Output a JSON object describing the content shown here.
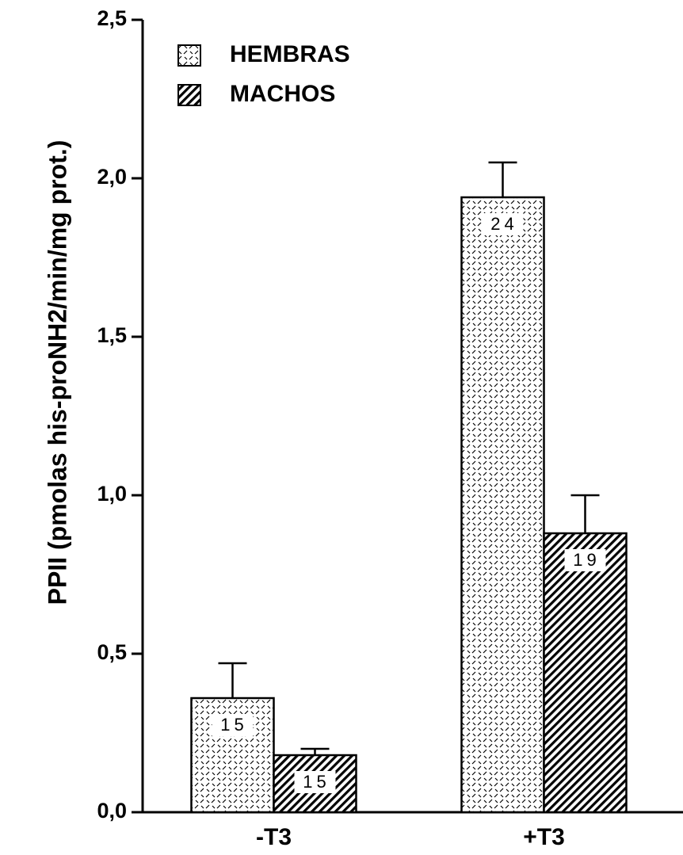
{
  "chart_data": {
    "type": "bar",
    "y_label": "PPII (pmolas his-proNH2/min/mg prot.)",
    "categories": [
      "-T3",
      "+T3"
    ],
    "series": [
      {
        "name": "HEMBRAS",
        "color": "#000000",
        "values": [
          0.36,
          1.94
        ],
        "errors": [
          0.11,
          0.11
        ],
        "n": [
          15,
          24
        ]
      },
      {
        "name": "MACHOS",
        "color": "#000000",
        "values": [
          0.18,
          0.88
        ],
        "errors": [
          0.02,
          0.12
        ],
        "n": [
          15,
          19
        ]
      }
    ],
    "ylim": [
      0,
      2.5
    ],
    "yticks": [
      {
        "value": 0,
        "label": "0,0"
      },
      {
        "value": 0.5,
        "label": "0,5"
      },
      {
        "value": 1,
        "label": "1,0"
      },
      {
        "value": 1.5,
        "label": "1,5"
      },
      {
        "value": 2,
        "label": "2,0"
      },
      {
        "value": 2.5,
        "label": "2,5"
      }
    ],
    "legend": "upper left",
    "grid": false
  }
}
